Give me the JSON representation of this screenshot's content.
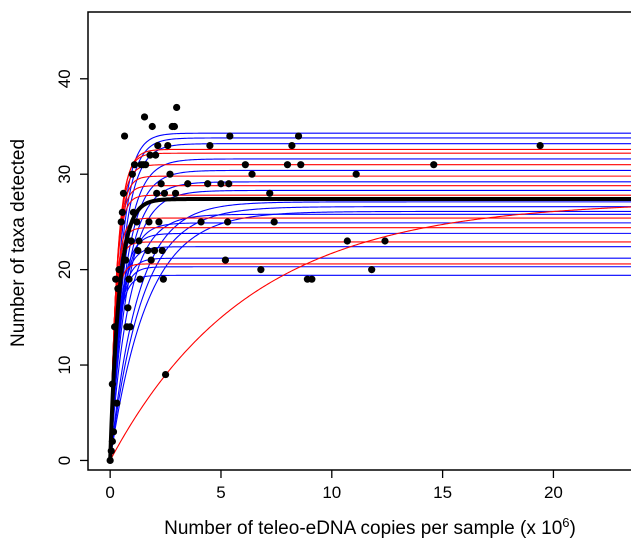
{
  "chart_data": {
    "type": "scatter",
    "title": "",
    "xlabel": "Number of teleo-eDNA copies per sample (x 10",
    "xlabel_exponent": "6",
    "xlabel_close": ")",
    "ylabel": "Number of taxa detected",
    "xlim": [
      -1,
      23.5
    ],
    "ylim": [
      -1,
      47
    ],
    "x_ticks": [
      0,
      5,
      10,
      15,
      20
    ],
    "x_tick_labels": [
      "0",
      "5",
      "10",
      "15",
      "20"
    ],
    "y_ticks": [
      0,
      10,
      20,
      30,
      40
    ],
    "y_tick_labels": [
      "0",
      "10",
      "20",
      "30",
      "40"
    ],
    "grid": false,
    "legend": "none",
    "colors": {
      "points": "#000000",
      "curves_blue": "#0000ff",
      "curves_red": "#ff0000",
      "mean_curve": "#000000"
    },
    "points": [
      {
        "x": 0.0,
        "y": 0
      },
      {
        "x": 0.05,
        "y": 1
      },
      {
        "x": 0.1,
        "y": 2
      },
      {
        "x": 0.1,
        "y": 8
      },
      {
        "x": 0.15,
        "y": 3
      },
      {
        "x": 0.2,
        "y": 14
      },
      {
        "x": 0.25,
        "y": 19
      },
      {
        "x": 0.3,
        "y": 6
      },
      {
        "x": 0.35,
        "y": 18
      },
      {
        "x": 0.4,
        "y": 20
      },
      {
        "x": 0.5,
        "y": 25
      },
      {
        "x": 0.55,
        "y": 26
      },
      {
        "x": 0.6,
        "y": 28
      },
      {
        "x": 0.65,
        "y": 34
      },
      {
        "x": 0.7,
        "y": 21
      },
      {
        "x": 0.75,
        "y": 14
      },
      {
        "x": 0.8,
        "y": 16
      },
      {
        "x": 0.85,
        "y": 19
      },
      {
        "x": 0.9,
        "y": 14
      },
      {
        "x": 0.95,
        "y": 23
      },
      {
        "x": 1.0,
        "y": 30
      },
      {
        "x": 1.05,
        "y": 26
      },
      {
        "x": 1.1,
        "y": 31
      },
      {
        "x": 1.2,
        "y": 25
      },
      {
        "x": 1.25,
        "y": 22
      },
      {
        "x": 1.3,
        "y": 23
      },
      {
        "x": 1.35,
        "y": 19
      },
      {
        "x": 1.4,
        "y": 31
      },
      {
        "x": 1.5,
        "y": 31
      },
      {
        "x": 1.55,
        "y": 36
      },
      {
        "x": 1.6,
        "y": 31
      },
      {
        "x": 1.7,
        "y": 22
      },
      {
        "x": 1.75,
        "y": 25
      },
      {
        "x": 1.8,
        "y": 32
      },
      {
        "x": 1.85,
        "y": 21
      },
      {
        "x": 1.9,
        "y": 35
      },
      {
        "x": 2.0,
        "y": 22
      },
      {
        "x": 2.05,
        "y": 32
      },
      {
        "x": 2.1,
        "y": 28
      },
      {
        "x": 2.15,
        "y": 33
      },
      {
        "x": 2.2,
        "y": 25
      },
      {
        "x": 2.3,
        "y": 29
      },
      {
        "x": 2.35,
        "y": 22
      },
      {
        "x": 2.4,
        "y": 19
      },
      {
        "x": 2.45,
        "y": 28
      },
      {
        "x": 2.5,
        "y": 9
      },
      {
        "x": 2.6,
        "y": 33
      },
      {
        "x": 2.7,
        "y": 30
      },
      {
        "x": 2.8,
        "y": 35
      },
      {
        "x": 2.9,
        "y": 35
      },
      {
        "x": 2.95,
        "y": 28
      },
      {
        "x": 3.0,
        "y": 37
      },
      {
        "x": 3.5,
        "y": 29
      },
      {
        "x": 4.1,
        "y": 25
      },
      {
        "x": 4.4,
        "y": 29
      },
      {
        "x": 4.5,
        "y": 33
      },
      {
        "x": 5.0,
        "y": 29
      },
      {
        "x": 5.2,
        "y": 21
      },
      {
        "x": 5.3,
        "y": 25
      },
      {
        "x": 5.35,
        "y": 29
      },
      {
        "x": 5.4,
        "y": 34
      },
      {
        "x": 6.1,
        "y": 31
      },
      {
        "x": 6.4,
        "y": 30
      },
      {
        "x": 6.8,
        "y": 20
      },
      {
        "x": 7.2,
        "y": 28
      },
      {
        "x": 7.4,
        "y": 25
      },
      {
        "x": 8.0,
        "y": 31
      },
      {
        "x": 8.2,
        "y": 33
      },
      {
        "x": 8.5,
        "y": 34
      },
      {
        "x": 8.6,
        "y": 31
      },
      {
        "x": 8.9,
        "y": 19
      },
      {
        "x": 9.1,
        "y": 19
      },
      {
        "x": 10.7,
        "y": 23
      },
      {
        "x": 11.1,
        "y": 30
      },
      {
        "x": 11.8,
        "y": 20
      },
      {
        "x": 12.4,
        "y": 23
      },
      {
        "x": 14.6,
        "y": 31
      },
      {
        "x": 19.4,
        "y": 33
      }
    ],
    "curves": [
      {
        "color": "blue",
        "asymptote": 34.3,
        "rate": 2.2
      },
      {
        "color": "blue",
        "asymptote": 33.8,
        "rate": 2.0
      },
      {
        "color": "blue",
        "asymptote": 33.2,
        "rate": 1.8
      },
      {
        "color": "red",
        "asymptote": 32.6,
        "rate": 3.0
      },
      {
        "color": "red",
        "asymptote": 32.2,
        "rate": 3.2
      },
      {
        "color": "blue",
        "asymptote": 31.6,
        "rate": 1.6
      },
      {
        "color": "red",
        "asymptote": 31.0,
        "rate": 3.4
      },
      {
        "color": "blue",
        "asymptote": 30.4,
        "rate": 1.5
      },
      {
        "color": "red",
        "asymptote": 29.8,
        "rate": 3.6
      },
      {
        "color": "blue",
        "asymptote": 29.2,
        "rate": 1.4
      },
      {
        "color": "red",
        "asymptote": 28.8,
        "rate": 3.8
      },
      {
        "color": "blue",
        "asymptote": 28.3,
        "rate": 1.3
      },
      {
        "color": "red",
        "asymptote": 27.8,
        "rate": 4.0
      },
      {
        "color": "blue",
        "asymptote": 27.1,
        "rate": 0.8
      },
      {
        "color": "blue",
        "asymptote": 26.6,
        "rate": 0.7
      },
      {
        "color": "blue",
        "asymptote": 26.1,
        "rate": 0.6
      },
      {
        "color": "blue",
        "asymptote": 25.8,
        "rate": 1.2
      },
      {
        "color": "red",
        "asymptote": 25.4,
        "rate": 4.2
      },
      {
        "color": "blue",
        "asymptote": 24.9,
        "rate": 1.9
      },
      {
        "color": "red",
        "asymptote": 24.4,
        "rate": 4.4
      },
      {
        "color": "blue",
        "asymptote": 23.8,
        "rate": 2.4
      },
      {
        "color": "red",
        "asymptote": 22.9,
        "rate": 4.6
      },
      {
        "color": "blue",
        "asymptote": 22.4,
        "rate": 2.6
      },
      {
        "color": "blue",
        "asymptote": 21.2,
        "rate": 2.8
      },
      {
        "color": "red",
        "asymptote": 20.6,
        "rate": 4.8
      },
      {
        "color": "blue",
        "asymptote": 20.3,
        "rate": 3.0
      },
      {
        "color": "blue",
        "asymptote": 19.4,
        "rate": 3.2
      },
      {
        "color": "red",
        "asymptote": 27.2,
        "rate": 0.16
      }
    ],
    "mean_curve": {
      "color": "black",
      "asymptote": 27.4,
      "rate": 2.5
    }
  }
}
